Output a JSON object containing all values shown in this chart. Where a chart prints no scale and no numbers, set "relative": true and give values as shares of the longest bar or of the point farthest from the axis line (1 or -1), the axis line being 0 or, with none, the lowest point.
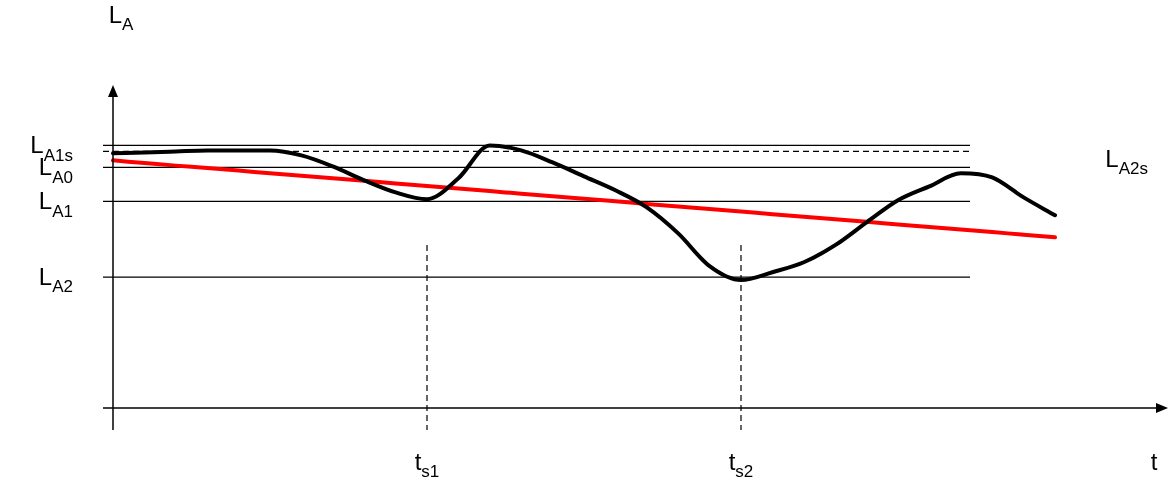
{
  "chart_data": {
    "type": "line",
    "relative": true,
    "xlabel": "t",
    "ylabel": "L$_{A}$",
    "categories": [
      null,
      null,
      null,
      null,
      null,
      null,
      null,
      null,
      null,
      null,
      "t$_{s1}$",
      null,
      null,
      null,
      null,
      null,
      null,
      null,
      null,
      null,
      "t$_{s2}$",
      null,
      null,
      null,
      null,
      null,
      null,
      null,
      null,
      null,
      null
    ],
    "series": [
      {
        "color": "#000000",
        "values": [
          0.97,
          0.973,
          0.977,
          0.981,
          0.981,
          0.981,
          0.962,
          0.92,
          0.867,
          0.821,
          0.795,
          0.875,
          1.0,
          0.981,
          0.935,
          0.882,
          0.829,
          0.764,
          0.665,
          0.54,
          0.487,
          0.517,
          0.555,
          0.62,
          0.707,
          0.791,
          0.844,
          0.894,
          0.878,
          0.802,
          0.734
        ]
      },
      {
        "color": "#ff0000",
        "values": [
          0.943,
          0.933,
          0.923,
          0.914,
          0.904,
          0.894,
          0.884,
          0.875,
          0.865,
          0.855,
          0.845,
          0.836,
          0.826,
          0.816,
          0.806,
          0.797,
          0.787,
          0.777,
          0.767,
          0.758,
          0.748,
          0.738,
          0.728,
          0.719,
          0.709,
          0.699,
          0.689,
          0.68,
          0.67,
          0.66,
          0.65
        ]
      }
    ],
    "ref_lines": [
      {
        "axis": "y",
        "value": 1.0,
        "label": "L$_{A1s}$",
        "color": "#000000"
      },
      {
        "axis": "y",
        "value": 0.977,
        "color": "#000000",
        "line_style": "dashed"
      },
      {
        "axis": "y",
        "value": 0.916,
        "label": "L$_{A0}$",
        "color": "#000000"
      },
      {
        "axis": "y",
        "value": 0.787,
        "label": "L$_{A1}$",
        "color": "#000000"
      },
      {
        "axis": "y",
        "value": 0.498,
        "label": "L$_{A2}$",
        "color": "#000000"
      },
      {
        "axis": "x",
        "value": "t$_{s1}$",
        "color": "#000000",
        "line_style": "dashed"
      },
      {
        "axis": "x",
        "value": "t$_{s2}$",
        "color": "#000000",
        "line_style": "dashed"
      }
    ],
    "annotations": [
      "L$_{A2s}$"
    ],
    "marker": "none",
    "line_style": "solid",
    "grid": false,
    "legend": false
  }
}
